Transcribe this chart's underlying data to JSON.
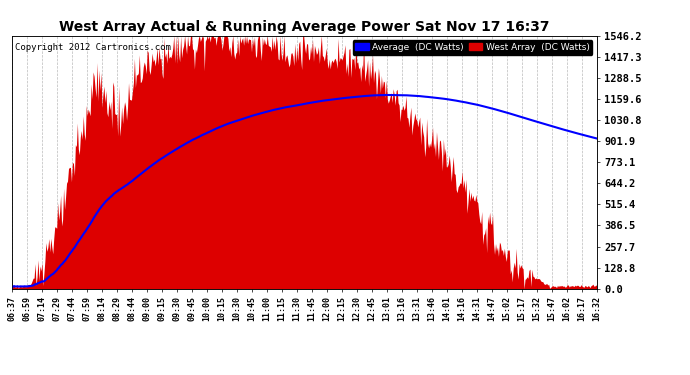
{
  "title": "West Array Actual & Running Average Power Sat Nov 17 16:37",
  "copyright": "Copyright 2012 Cartronics.com",
  "ylabel_right": [
    "0.0",
    "128.8",
    "257.7",
    "386.5",
    "515.4",
    "644.2",
    "773.1",
    "901.9",
    "1030.8",
    "1159.6",
    "1288.5",
    "1417.3",
    "1546.2"
  ],
  "ymax": 1546.2,
  "legend_labels": [
    "Average  (DC Watts)",
    "West Array  (DC Watts)"
  ],
  "legend_colors": [
    "#0000ff",
    "#dd0000"
  ],
  "background_color": "#ffffff",
  "grid_color": "#bbbbbb",
  "fill_color": "#dd0000",
  "line_color": "#0000ff",
  "x_tick_labels": [
    "06:37",
    "06:59",
    "07:14",
    "07:29",
    "07:44",
    "07:59",
    "08:14",
    "08:29",
    "08:44",
    "09:00",
    "09:15",
    "09:30",
    "09:45",
    "10:00",
    "10:15",
    "10:30",
    "10:45",
    "11:00",
    "11:15",
    "11:30",
    "11:45",
    "12:00",
    "12:15",
    "12:30",
    "12:45",
    "13:01",
    "13:16",
    "13:31",
    "13:46",
    "14:01",
    "14:16",
    "14:31",
    "14:47",
    "15:02",
    "15:17",
    "15:32",
    "15:47",
    "16:02",
    "16:17",
    "16:32"
  ],
  "n_points": 595
}
